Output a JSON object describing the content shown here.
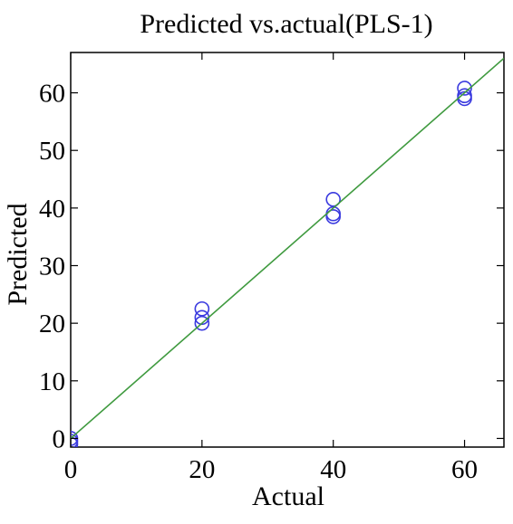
{
  "chart_data": {
    "type": "scatter",
    "title": "Predicted vs.actual(PLS-1)",
    "xlabel": "Actual",
    "ylabel": "Predicted",
    "xlim": [
      0,
      66
    ],
    "ylim": [
      -1.5,
      67
    ],
    "xticks": [
      0,
      20,
      40,
      60
    ],
    "yticks": [
      0,
      10,
      20,
      30,
      40,
      50,
      60
    ],
    "grid": false,
    "series": [
      {
        "marker": "open-circle",
        "color": "#3a3adf",
        "points": [
          {
            "x": 0,
            "y": 0
          },
          {
            "x": 0,
            "y": -0.5
          },
          {
            "x": 0,
            "y": -1
          },
          {
            "x": 20,
            "y": 22.5
          },
          {
            "x": 20,
            "y": 21
          },
          {
            "x": 20,
            "y": 20
          },
          {
            "x": 40,
            "y": 41.5
          },
          {
            "x": 40,
            "y": 39
          },
          {
            "x": 40,
            "y": 38.5
          },
          {
            "x": 60,
            "y": 60.8
          },
          {
            "x": 60,
            "y": 59.5
          },
          {
            "x": 60,
            "y": 59
          }
        ]
      },
      {
        "marker": "line",
        "color": "#3f9a3f",
        "line": [
          {
            "x": 0,
            "y": 0
          },
          {
            "x": 66,
            "y": 66
          }
        ]
      }
    ]
  }
}
